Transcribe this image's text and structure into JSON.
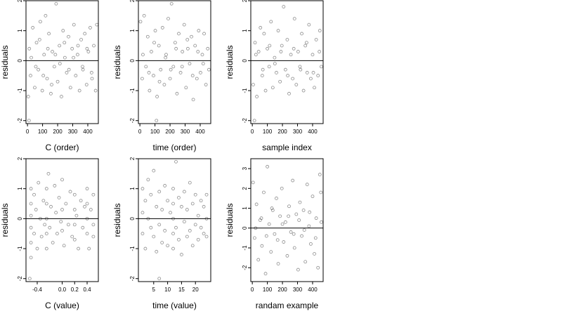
{
  "chart_data": [
    {
      "type": "scatter",
      "xlabel": "C (order)",
      "ylabel": "residuals",
      "xlim": [
        -10,
        470
      ],
      "ylim": [
        -2.1,
        2.0
      ],
      "xticks": [
        0,
        100,
        200,
        300,
        400
      ],
      "xtick_labels": [
        "0",
        "100",
        "200",
        "300",
        "400"
      ],
      "yticks": [
        -2,
        -1,
        0,
        1,
        2
      ],
      "ytick_labels": [
        "-2",
        "-1",
        "0",
        "1",
        "2"
      ],
      "reference_line_y": 0,
      "grid": false,
      "points": [
        [
          5,
          -1.2
        ],
        [
          12,
          0.4
        ],
        [
          20,
          -0.5
        ],
        [
          35,
          1.1
        ],
        [
          48,
          -0.9
        ],
        [
          60,
          0.6
        ],
        [
          72,
          -0.3
        ],
        [
          85,
          1.3
        ],
        [
          98,
          -1.0
        ],
        [
          110,
          0.2
        ],
        [
          120,
          1.5
        ],
        [
          130,
          -0.6
        ],
        [
          142,
          0.9
        ],
        [
          155,
          -1.1
        ],
        [
          165,
          0.3
        ],
        [
          178,
          -0.2
        ],
        [
          190,
          1.9
        ],
        [
          200,
          -0.7
        ],
        [
          212,
          0.5
        ],
        [
          225,
          -1.2
        ],
        [
          236,
          1.0
        ],
        [
          248,
          0.1
        ],
        [
          260,
          -0.4
        ],
        [
          272,
          0.8
        ],
        [
          285,
          -0.9
        ],
        [
          296,
          0.4
        ],
        [
          308,
          1.2
        ],
        [
          320,
          -0.5
        ],
        [
          332,
          0.2
        ],
        [
          345,
          -1.0
        ],
        [
          356,
          0.7
        ],
        [
          368,
          -0.3
        ],
        [
          380,
          0.9
        ],
        [
          392,
          -0.8
        ],
        [
          404,
          0.3
        ],
        [
          416,
          1.1
        ],
        [
          428,
          -0.6
        ],
        [
          440,
          0.5
        ],
        [
          452,
          -1.0
        ],
        [
          460,
          1.2
        ],
        [
          25,
          0.1
        ],
        [
          55,
          -0.2
        ],
        [
          80,
          0.7
        ],
        [
          105,
          -0.5
        ],
        [
          135,
          0.4
        ],
        [
          160,
          -0.8
        ],
        [
          185,
          0.2
        ],
        [
          215,
          -0.1
        ],
        [
          245,
          0.6
        ],
        [
          275,
          -0.3
        ],
        [
          305,
          0.1
        ],
        [
          335,
          0.5
        ],
        [
          365,
          -0.2
        ],
        [
          395,
          0.4
        ],
        [
          425,
          -0.4
        ],
        [
          10,
          -2.0
        ]
      ]
    },
    {
      "type": "scatter",
      "xlabel": "time (order)",
      "ylabel": "residuals",
      "xlim": [
        -10,
        470
      ],
      "ylim": [
        -2.1,
        2.0
      ],
      "xticks": [
        0,
        100,
        200,
        300,
        400
      ],
      "xtick_labels": [
        "0",
        "100",
        "200",
        "300",
        "400"
      ],
      "yticks": [
        -2,
        -1,
        0,
        1,
        2
      ],
      "ytick_labels": [
        "-2",
        "-1",
        "0",
        "1",
        "2"
      ],
      "reference_line_y": 0,
      "grid": false,
      "points": [
        [
          4,
          1.3
        ],
        [
          15,
          -0.6
        ],
        [
          28,
          1.5
        ],
        [
          40,
          -0.2
        ],
        [
          52,
          0.8
        ],
        [
          64,
          -1.0
        ],
        [
          76,
          0.3
        ],
        [
          90,
          -0.5
        ],
        [
          102,
          1.0
        ],
        [
          114,
          -1.2
        ],
        [
          126,
          0.5
        ],
        [
          138,
          -0.3
        ],
        [
          150,
          1.1
        ],
        [
          162,
          -0.8
        ],
        [
          174,
          0.2
        ],
        [
          188,
          1.4
        ],
        [
          200,
          -0.6
        ],
        [
          210,
          1.9
        ],
        [
          222,
          -0.2
        ],
        [
          234,
          0.6
        ],
        [
          246,
          -1.1
        ],
        [
          258,
          0.9
        ],
        [
          270,
          -0.4
        ],
        [
          282,
          0.3
        ],
        [
          294,
          1.2
        ],
        [
          306,
          -0.9
        ],
        [
          318,
          0.4
        ],
        [
          330,
          -0.1
        ],
        [
          342,
          0.8
        ],
        [
          354,
          -1.3
        ],
        [
          366,
          0.5
        ],
        [
          378,
          -0.6
        ],
        [
          390,
          1.0
        ],
        [
          402,
          -0.4
        ],
        [
          414,
          0.2
        ],
        [
          426,
          0.9
        ],
        [
          438,
          -0.8
        ],
        [
          450,
          0.4
        ],
        [
          458,
          -0.3
        ],
        [
          20,
          0.2
        ],
        [
          60,
          -0.4
        ],
        [
          95,
          0.6
        ],
        [
          130,
          -0.7
        ],
        [
          170,
          0.1
        ],
        [
          205,
          -0.3
        ],
        [
          240,
          0.4
        ],
        [
          280,
          -0.2
        ],
        [
          315,
          0.7
        ],
        [
          350,
          -0.5
        ],
        [
          385,
          0.3
        ],
        [
          420,
          -0.1
        ],
        [
          110,
          -2.0
        ]
      ]
    },
    {
      "type": "scatter",
      "xlabel": "sample index",
      "ylabel": "residuals",
      "xlim": [
        -10,
        470
      ],
      "ylim": [
        -2.1,
        2.0
      ],
      "xticks": [
        0,
        100,
        200,
        300,
        400
      ],
      "xtick_labels": [
        "0",
        "100",
        "200",
        "300",
        "400"
      ],
      "yticks": [
        -2,
        -1,
        0,
        1,
        2
      ],
      "ytick_labels": [
        "-2",
        "-1",
        "0",
        "1",
        "2"
      ],
      "reference_line_y": 0,
      "grid": false,
      "points": [
        [
          6,
          -0.8
        ],
        [
          18,
          0.6
        ],
        [
          30,
          -1.2
        ],
        [
          42,
          0.3
        ],
        [
          54,
          1.1
        ],
        [
          66,
          -0.5
        ],
        [
          78,
          0.9
        ],
        [
          88,
          -1.0
        ],
        [
          100,
          0.4
        ],
        [
          112,
          -0.2
        ],
        [
          124,
          1.3
        ],
        [
          136,
          -0.9
        ],
        [
          148,
          0.1
        ],
        [
          160,
          -0.4
        ],
        [
          172,
          1.0
        ],
        [
          184,
          -0.7
        ],
        [
          196,
          0.5
        ],
        [
          208,
          1.8
        ],
        [
          220,
          -0.3
        ],
        [
          232,
          0.7
        ],
        [
          244,
          -1.1
        ],
        [
          256,
          0.2
        ],
        [
          268,
          -0.6
        ],
        [
          280,
          1.4
        ],
        [
          292,
          -0.8
        ],
        [
          304,
          0.3
        ],
        [
          316,
          -0.2
        ],
        [
          328,
          0.9
        ],
        [
          340,
          -1.0
        ],
        [
          352,
          0.5
        ],
        [
          364,
          -0.4
        ],
        [
          376,
          1.2
        ],
        [
          388,
          -0.6
        ],
        [
          400,
          0.2
        ],
        [
          412,
          -0.9
        ],
        [
          424,
          0.7
        ],
        [
          436,
          -0.5
        ],
        [
          448,
          1.0
        ],
        [
          458,
          -0.2
        ],
        [
          24,
          0.2
        ],
        [
          70,
          -0.3
        ],
        [
          115,
          0.5
        ],
        [
          150,
          -0.1
        ],
        [
          190,
          0.3
        ],
        [
          235,
          -0.5
        ],
        [
          275,
          0.4
        ],
        [
          320,
          -0.3
        ],
        [
          360,
          0.6
        ],
        [
          405,
          -0.4
        ],
        [
          445,
          0.3
        ],
        [
          14,
          -2.0
        ]
      ]
    },
    {
      "type": "scatter",
      "xlabel": "C (value)",
      "ylabel": "residuals",
      "xlim": [
        -0.58,
        0.58
      ],
      "ylim": [
        -2.1,
        2.0
      ],
      "xticks": [
        -0.4,
        0.0,
        0.2,
        0.4
      ],
      "xtick_labels": [
        "-0.4",
        "0.0",
        "0.2",
        "0.4"
      ],
      "yticks": [
        -2,
        -1,
        0,
        1,
        2
      ],
      "ytick_labels": [
        "-2",
        "-1",
        "0",
        "1",
        "2"
      ],
      "reference_line_y": 0,
      "grid": false,
      "points": [
        [
          -0.5,
          1.0
        ],
        [
          -0.5,
          0.5
        ],
        [
          -0.5,
          0.1
        ],
        [
          -0.5,
          -0.3
        ],
        [
          -0.5,
          -0.8
        ],
        [
          -0.5,
          -1.3
        ],
        [
          -0.45,
          0.8
        ],
        [
          -0.45,
          -0.5
        ],
        [
          -0.42,
          0.3
        ],
        [
          -0.4,
          -1.0
        ],
        [
          -0.38,
          1.2
        ],
        [
          -0.35,
          0.0
        ],
        [
          -0.33,
          -0.6
        ],
        [
          -0.3,
          0.6
        ],
        [
          -0.28,
          -0.2
        ],
        [
          -0.25,
          1.0
        ],
        [
          -0.25,
          0.5
        ],
        [
          -0.25,
          0.0
        ],
        [
          -0.25,
          -0.5
        ],
        [
          -0.25,
          -1.0
        ],
        [
          -0.22,
          1.5
        ],
        [
          -0.2,
          -0.3
        ],
        [
          -0.18,
          0.4
        ],
        [
          -0.15,
          -0.8
        ],
        [
          -0.12,
          1.1
        ],
        [
          -0.1,
          0.2
        ],
        [
          -0.08,
          -0.5
        ],
        [
          -0.05,
          0.7
        ],
        [
          -0.02,
          -0.1
        ],
        [
          0.0,
          1.3
        ],
        [
          0.0,
          0.3
        ],
        [
          0.0,
          -0.4
        ],
        [
          0.03,
          -0.9
        ],
        [
          0.06,
          0.5
        ],
        [
          0.1,
          -0.2
        ],
        [
          0.13,
          0.9
        ],
        [
          0.16,
          -0.6
        ],
        [
          0.2,
          0.8
        ],
        [
          0.2,
          0.3
        ],
        [
          0.2,
          -0.2
        ],
        [
          0.2,
          -0.7
        ],
        [
          0.23,
          0.1
        ],
        [
          0.26,
          -1.0
        ],
        [
          0.3,
          0.6
        ],
        [
          0.33,
          -0.3
        ],
        [
          0.36,
          0.4
        ],
        [
          0.4,
          1.0
        ],
        [
          0.4,
          0.5
        ],
        [
          0.4,
          0.0
        ],
        [
          0.4,
          -0.5
        ],
        [
          0.43,
          -1.0
        ],
        [
          0.46,
          0.3
        ],
        [
          0.5,
          0.8
        ],
        [
          0.5,
          -0.2
        ],
        [
          0.5,
          -0.6
        ],
        [
          -0.52,
          -2.0
        ]
      ]
    },
    {
      "type": "scatter",
      "xlabel": "time (value)",
      "ylabel": "residuals",
      "xlim": [
        -0.5,
        25.5
      ],
      "ylim": [
        -2.1,
        2.0
      ],
      "xticks": [
        5,
        10,
        15,
        20
      ],
      "xtick_labels": [
        "5",
        "10",
        "15",
        "20"
      ],
      "yticks": [
        -2,
        -1,
        0,
        1,
        2
      ],
      "ytick_labels": [
        "-2",
        "-1",
        "0",
        "1",
        "2"
      ],
      "reference_line_y": 0,
      "grid": false,
      "points": [
        [
          1,
          1.0
        ],
        [
          1,
          0.2
        ],
        [
          1,
          -0.5
        ],
        [
          2,
          0.6
        ],
        [
          2,
          -1.0
        ],
        [
          3,
          1.3
        ],
        [
          3,
          0.0
        ],
        [
          4,
          -0.3
        ],
        [
          4,
          0.8
        ],
        [
          5,
          1.6
        ],
        [
          5,
          -0.6
        ],
        [
          6,
          0.4
        ],
        [
          6,
          -1.1
        ],
        [
          7,
          0.9
        ],
        [
          7,
          -0.2
        ],
        [
          8,
          0.3
        ],
        [
          8,
          -0.8
        ],
        [
          9,
          1.1
        ],
        [
          9,
          -0.4
        ],
        [
          10,
          0.6
        ],
        [
          10,
          -0.9
        ],
        [
          11,
          0.2
        ],
        [
          12,
          1.0
        ],
        [
          12,
          0.5
        ],
        [
          12,
          0.0
        ],
        [
          12,
          -0.5
        ],
        [
          12,
          -1.0
        ],
        [
          13,
          1.9
        ],
        [
          13,
          -0.3
        ],
        [
          14,
          0.7
        ],
        [
          14,
          -0.7
        ],
        [
          15,
          0.4
        ],
        [
          15,
          -1.2
        ],
        [
          16,
          0.9
        ],
        [
          16,
          -0.1
        ],
        [
          17,
          0.3
        ],
        [
          17,
          -0.6
        ],
        [
          18,
          1.2
        ],
        [
          18,
          -0.4
        ],
        [
          19,
          0.5
        ],
        [
          19,
          -0.9
        ],
        [
          20,
          0.8
        ],
        [
          20,
          -0.2
        ],
        [
          21,
          0.1
        ],
        [
          21,
          -0.7
        ],
        [
          22,
          0.6
        ],
        [
          22,
          -0.3
        ],
        [
          23,
          0.4
        ],
        [
          23,
          -0.5
        ],
        [
          24,
          0.8
        ],
        [
          24,
          0.0
        ],
        [
          24,
          -0.6
        ],
        [
          7,
          -2.0
        ]
      ]
    },
    {
      "type": "scatter",
      "xlabel": "randam example",
      "ylabel": "residuals",
      "xlim": [
        -10,
        470
      ],
      "ylim": [
        -2.7,
        3.5
      ],
      "xticks": [
        0,
        100,
        200,
        300,
        400
      ],
      "xtick_labels": [
        "0",
        "100",
        "200",
        "300",
        "400"
      ],
      "yticks": [
        -2,
        -1,
        0,
        1,
        2,
        3
      ],
      "ytick_labels": [
        "-2",
        "-1",
        "0",
        "1",
        "2",
        "3"
      ],
      "reference_line_y": 0,
      "grid": false,
      "points": [
        [
          5,
          2.3
        ],
        [
          15,
          -0.5
        ],
        [
          28,
          1.2
        ],
        [
          40,
          -1.6
        ],
        [
          52,
          0.4
        ],
        [
          64,
          -0.9
        ],
        [
          76,
          1.8
        ],
        [
          88,
          -2.3
        ],
        [
          100,
          3.1
        ],
        [
          112,
          0.2
        ],
        [
          124,
          -1.2
        ],
        [
          136,
          0.9
        ],
        [
          148,
          -0.3
        ],
        [
          160,
          1.5
        ],
        [
          172,
          -1.8
        ],
        [
          184,
          0.6
        ],
        [
          196,
          2.0
        ],
        [
          208,
          -0.7
        ],
        [
          220,
          0.3
        ],
        [
          232,
          -1.4
        ],
        [
          244,
          1.1
        ],
        [
          256,
          -0.2
        ],
        [
          268,
          2.4
        ],
        [
          280,
          -1.0
        ],
        [
          292,
          0.7
        ],
        [
          304,
          -2.1
        ],
        [
          316,
          1.3
        ],
        [
          328,
          -0.4
        ],
        [
          340,
          0.9
        ],
        [
          352,
          -1.7
        ],
        [
          364,
          2.2
        ],
        [
          376,
          0.1
        ],
        [
          388,
          -0.8
        ],
        [
          400,
          1.6
        ],
        [
          412,
          -1.3
        ],
        [
          424,
          0.5
        ],
        [
          436,
          -2.0
        ],
        [
          448,
          2.7
        ],
        [
          458,
          0.3
        ],
        [
          22,
          0.0
        ],
        [
          60,
          0.5
        ],
        [
          94,
          -0.4
        ],
        [
          130,
          1.0
        ],
        [
          168,
          -0.6
        ],
        [
          200,
          0.2
        ],
        [
          240,
          0.6
        ],
        [
          275,
          -0.3
        ],
        [
          310,
          0.4
        ],
        [
          345,
          -0.1
        ],
        [
          380,
          0.8
        ],
        [
          420,
          -0.5
        ],
        [
          455,
          1.8
        ]
      ]
    }
  ]
}
